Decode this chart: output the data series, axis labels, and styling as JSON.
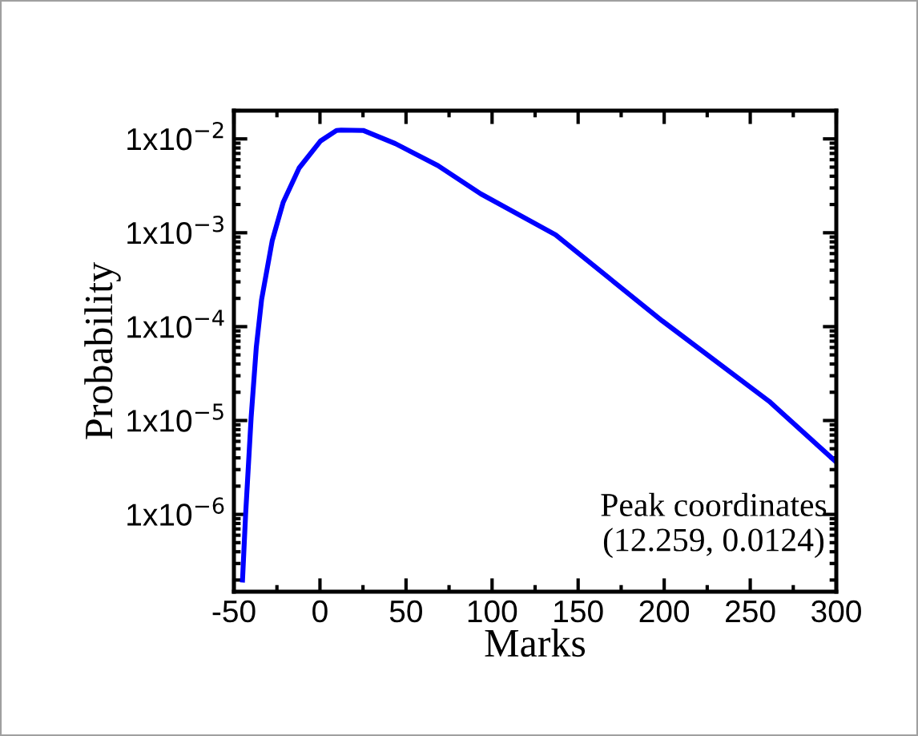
{
  "chart_data": {
    "type": "line",
    "xlabel": "Marks",
    "ylabel": "Probability",
    "log": "y",
    "x": [
      -45,
      -43.2,
      -40.0,
      -37.0,
      -33.9,
      -27.7,
      -21.4,
      -12.1,
      0.3,
      9.6,
      12.259,
      25.1,
      43.8,
      68.5,
      93.4,
      136.9,
      198.9,
      261,
      300
    ],
    "series": [
      {
        "color": "#0000ff",
        "values": [
          2e-07,
          1e-06,
          1.07e-05,
          6e-05,
          0.000195,
          0.00083,
          0.0021,
          0.0049,
          0.0095,
          0.0123,
          0.0124,
          0.0123,
          0.0089,
          0.0052,
          0.0026,
          0.00095,
          0.000115,
          1.6e-05,
          3.6e-06
        ]
      }
    ],
    "xlim": [
      -50,
      300
    ],
    "xticks": [
      -50,
      0,
      50,
      100,
      150,
      200,
      250,
      300
    ],
    "ylim": [
      1.5e-07,
      0.02
    ],
    "yticks": [
      {
        "value": 1e-06,
        "label": "1x10$^{−6}$"
      },
      {
        "value": 1e-05,
        "label": "1x10$^{−5}$"
      },
      {
        "value": 0.0001,
        "label": "1x10$^{−4}$"
      },
      {
        "value": 0.001,
        "label": "1x10$^{−3}$"
      },
      {
        "value": 0.01,
        "label": "1x10$^{−2}$"
      }
    ],
    "annotations": [
      "Peak coordinates\n(12.259, 0.0124)"
    ],
    "grid": false,
    "legend": false,
    "marker": "none",
    "line_style": "solid"
  }
}
